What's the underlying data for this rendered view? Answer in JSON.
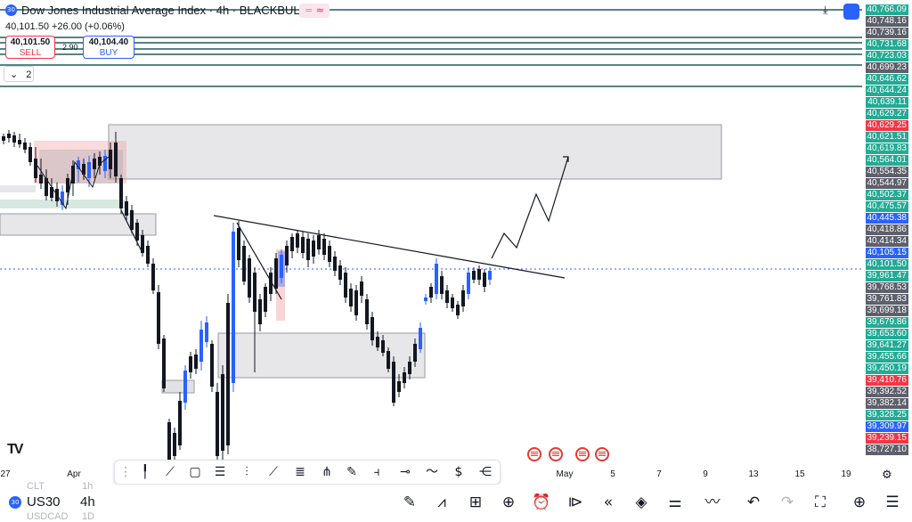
{
  "header": {
    "badge": "30",
    "title": "Dow Jones Industrial Average Index · 4h · BLACKBULL",
    "chips": [
      "=",
      "≈"
    ],
    "download_icon": "download-icon",
    "layout_icon": "layout-square-icon"
  },
  "ohlc": {
    "text": "40,101.50 +26.00 (+0.06%)"
  },
  "trade": {
    "sell_price": "40,101.50",
    "sell_label": "SELL",
    "spread": "2.90",
    "buy_price": "40,104.40",
    "buy_label": "BUY"
  },
  "indicator_toggle": {
    "icon": "chevron-down-icon",
    "count": "2"
  },
  "price_scale": {
    "labels": [
      {
        "text": "40,766.09",
        "color": "#22ab94"
      },
      {
        "text": "40,748.16",
        "color": "#5d606b"
      },
      {
        "text": "40,739.16",
        "color": "#5d606b"
      },
      {
        "text": "40,731.68",
        "color": "#22ab94"
      },
      {
        "text": "40,723.03",
        "color": "#22ab94"
      },
      {
        "text": "40,699.23",
        "color": "#5d606b"
      },
      {
        "text": "40,646.62",
        "color": "#22ab94"
      },
      {
        "text": "40,644.24",
        "color": "#22ab94"
      },
      {
        "text": "40,639.11",
        "color": "#22ab94"
      },
      {
        "text": "40,629.27",
        "color": "#22ab94"
      },
      {
        "text": "40,629.25",
        "color": "#f23645"
      },
      {
        "text": "40,621.51",
        "color": "#22ab94"
      },
      {
        "text": "40,619.83",
        "color": "#22ab94"
      },
      {
        "text": "40,564.01",
        "color": "#22ab94"
      },
      {
        "text": "40,554.35",
        "color": "#5d606b"
      },
      {
        "text": "40,544.97",
        "color": "#5d606b"
      },
      {
        "text": "40,502.37",
        "color": "#22ab94"
      },
      {
        "text": "40,475.57",
        "color": "#22ab94"
      },
      {
        "text": "40,445.38",
        "color": "#2962ff"
      },
      {
        "text": "40,418.86",
        "color": "#5d606b"
      },
      {
        "text": "40,414.34",
        "color": "#5d606b"
      },
      {
        "text": "40,105.15",
        "color": "#2962ff"
      },
      {
        "text": "40,101.50",
        "color": "#22ab94"
      },
      {
        "text": "39,961.47",
        "color": "#22ab94"
      },
      {
        "text": "39,768.53",
        "color": "#5d606b"
      },
      {
        "text": "39,761.83",
        "color": "#5d606b"
      },
      {
        "text": "39,699.18",
        "color": "#5d606b"
      },
      {
        "text": "39,679.86",
        "color": "#22ab94"
      },
      {
        "text": "39,653.60",
        "color": "#22ab94"
      },
      {
        "text": "39,641.27",
        "color": "#22ab94"
      },
      {
        "text": "39,455.66",
        "color": "#22ab94"
      },
      {
        "text": "39,450.19",
        "color": "#22ab94"
      },
      {
        "text": "39,410.76",
        "color": "#f23645"
      },
      {
        "text": "39,392.52",
        "color": "#5d606b"
      },
      {
        "text": "39,382.14",
        "color": "#5d606b"
      },
      {
        "text": "39,328.25",
        "color": "#22ab94"
      },
      {
        "text": "39,309.97",
        "color": "#2962ff"
      },
      {
        "text": "39,239.15",
        "color": "#f23645"
      },
      {
        "text": "38,727.10",
        "color": "#5d606b"
      }
    ]
  },
  "time_axis": {
    "labels": [
      "27",
      "Apr",
      "May",
      "5",
      "7",
      "9",
      "13",
      "15",
      "19"
    ]
  },
  "drawing_toolbar": {
    "icons": [
      "drag-handle-icon",
      "cursor-line-icon",
      "trend-line-icon",
      "rectangle-icon",
      "fib-icon",
      "parallel-channel-icon",
      "ray-icon",
      "horizontal-lines-icon",
      "pitchfork-icon",
      "brush-icon",
      "long-position-icon",
      "horizontal-line-icon",
      "path-icon",
      "price-range-icon",
      "more-tools-icon"
    ]
  },
  "event_flags": {
    "count": 4,
    "label": "us-economic-event-icon"
  },
  "settings_icon": "gear-icon",
  "bottom_bar": {
    "badge": "30",
    "symbol": "US30",
    "timeframe": "4h",
    "ghost_rows": [
      "CLT",
      "1h",
      "USDCAD",
      "1D"
    ],
    "icons": [
      "pencil-icon",
      "indicators-icon",
      "grid-icon",
      "plus-circle-icon",
      "alarm-clock-icon",
      "replay-icon",
      "layers-icon",
      "settings-sliders-icon",
      "trend-wave-icon",
      "undo-icon",
      "redo-icon",
      "fullscreen-icon",
      "add-alert-icon",
      "menu-icon"
    ]
  }
}
